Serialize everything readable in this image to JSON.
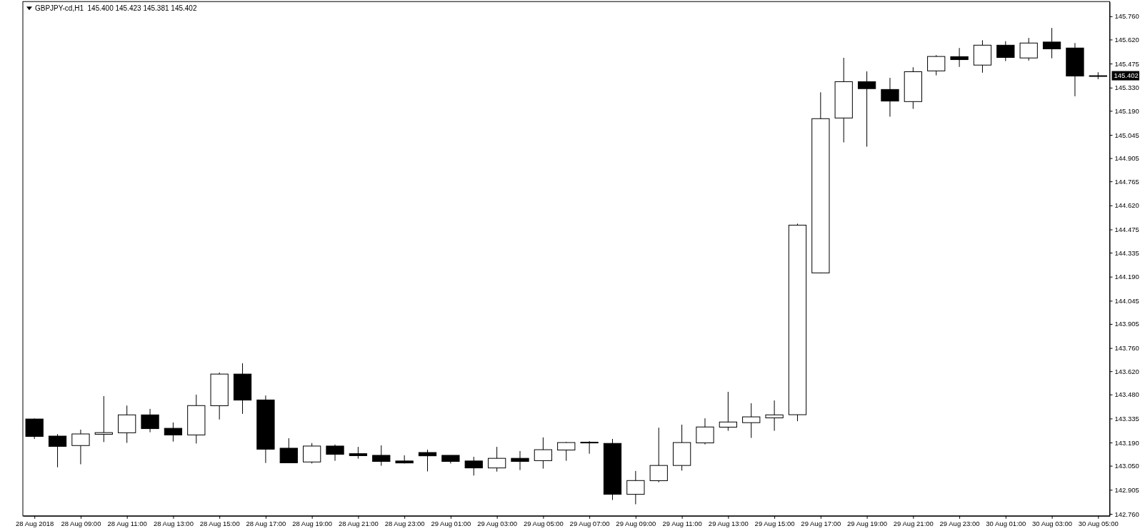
{
  "chart_data": {
    "type": "candlestick",
    "title": "GBPJPY-cd,H1  145.400 145.423 145.381 145.402",
    "categories": [
      "28 Aug 2018",
      null,
      "28 Aug 09:00",
      null,
      "28 Aug 11:00",
      null,
      "28 Aug 13:00",
      null,
      "28 Aug 15:00",
      null,
      "28 Aug 17:00",
      null,
      "28 Aug 19:00",
      null,
      "28 Aug 21:00",
      null,
      "28 Aug 23:00",
      null,
      "29 Aug 01:00",
      null,
      "29 Aug 03:00",
      null,
      "29 Aug 05:00",
      null,
      "29 Aug 07:00",
      null,
      "29 Aug 09:00",
      null,
      "29 Aug 11:00",
      null,
      "29 Aug 13:00",
      null,
      "29 Aug 15:00",
      null,
      "29 Aug 17:00",
      null,
      "29 Aug 19:00",
      null,
      "29 Aug 21:00",
      null,
      "29 Aug 23:00",
      null,
      "30 Aug 01:00",
      null,
      "30 Aug 03:00",
      null,
      "30 Aug 05:00"
    ],
    "ohlc": [
      [
        143.332,
        143.335,
        143.212,
        143.227
      ],
      [
        143.229,
        143.241,
        143.041,
        143.167
      ],
      [
        143.172,
        143.268,
        143.059,
        143.242
      ],
      [
        143.24,
        143.47,
        143.193,
        143.25
      ],
      [
        143.249,
        143.413,
        143.188,
        143.357
      ],
      [
        143.357,
        143.393,
        143.252,
        143.274
      ],
      [
        143.276,
        143.311,
        143.196,
        143.236
      ],
      [
        143.236,
        143.479,
        143.184,
        143.413
      ],
      [
        143.412,
        143.612,
        143.329,
        143.603
      ],
      [
        143.603,
        143.668,
        143.363,
        143.446
      ],
      [
        143.447,
        143.474,
        143.067,
        143.15
      ],
      [
        143.156,
        143.216,
        143.068,
        143.068
      ],
      [
        143.073,
        143.187,
        143.064,
        143.169
      ],
      [
        143.169,
        143.178,
        143.08,
        143.119
      ],
      [
        143.123,
        143.164,
        143.093,
        143.111
      ],
      [
        143.113,
        143.173,
        143.05,
        143.076
      ],
      [
        143.079,
        143.113,
        143.064,
        143.067
      ],
      [
        143.13,
        143.147,
        143.016,
        143.11
      ],
      [
        143.113,
        143.113,
        143.064,
        143.076
      ],
      [
        143.079,
        143.104,
        142.991,
        143.037
      ],
      [
        143.037,
        143.164,
        143.015,
        143.095
      ],
      [
        143.095,
        143.139,
        143.024,
        143.076
      ],
      [
        143.081,
        143.221,
        143.033,
        143.147
      ],
      [
        143.145,
        143.194,
        143.08,
        143.19
      ],
      [
        143.192,
        143.199,
        143.123,
        143.188
      ],
      [
        143.185,
        143.212,
        142.844,
        142.878
      ],
      [
        142.878,
        143.019,
        142.818,
        142.961
      ],
      [
        142.96,
        143.28,
        142.951,
        143.052
      ],
      [
        143.052,
        143.298,
        143.021,
        143.19
      ],
      [
        143.188,
        143.336,
        143.179,
        143.284
      ],
      [
        143.283,
        143.496,
        143.261,
        143.314
      ],
      [
        143.31,
        143.427,
        143.218,
        143.345
      ],
      [
        143.339,
        143.444,
        143.261,
        143.357
      ],
      [
        143.358,
        144.51,
        143.319,
        144.501
      ],
      [
        144.213,
        145.302,
        144.21,
        145.143
      ],
      [
        145.147,
        145.51,
        145.0,
        145.366
      ],
      [
        145.366,
        145.428,
        144.974,
        145.324
      ],
      [
        145.319,
        145.389,
        145.155,
        145.249
      ],
      [
        145.246,
        145.453,
        145.202,
        145.426
      ],
      [
        145.431,
        145.526,
        145.404,
        145.518
      ],
      [
        145.517,
        145.569,
        145.455,
        145.499
      ],
      [
        145.466,
        145.616,
        145.42,
        145.586
      ],
      [
        145.586,
        145.61,
        145.49,
        145.512
      ],
      [
        145.509,
        145.63,
        145.493,
        145.599
      ],
      [
        145.605,
        145.69,
        145.507,
        145.564
      ],
      [
        145.569,
        145.599,
        145.278,
        145.4
      ],
      [
        145.4,
        145.423,
        145.381,
        145.402
      ]
    ],
    "ylim": [
      142.748,
      145.849
    ],
    "yticks": [
      {
        "value": 142.76,
        "label": "142.760"
      },
      {
        "value": 142.905,
        "label": "142.905"
      },
      {
        "value": 143.05,
        "label": "143.050"
      },
      {
        "value": 143.19,
        "label": "143.190"
      },
      {
        "value": 143.335,
        "label": "143.335"
      },
      {
        "value": 143.48,
        "label": "143.480"
      },
      {
        "value": 143.62,
        "label": "143.620"
      },
      {
        "value": 143.76,
        "label": "143.760"
      },
      {
        "value": 143.905,
        "label": "143.905"
      },
      {
        "value": 144.045,
        "label": "144.045"
      },
      {
        "value": 144.19,
        "label": "144.190"
      },
      {
        "value": 144.335,
        "label": "144.335"
      },
      {
        "value": 144.475,
        "label": "144.475"
      },
      {
        "value": 144.62,
        "label": "144.620"
      },
      {
        "value": 144.765,
        "label": "144.765"
      },
      {
        "value": 144.905,
        "label": "144.905"
      },
      {
        "value": 145.045,
        "label": "145.045"
      },
      {
        "value": 145.19,
        "label": "145.190"
      },
      {
        "value": 145.33,
        "label": "145.330"
      },
      {
        "value": 145.475,
        "label": "145.475"
      },
      {
        "value": 145.62,
        "label": "145.620"
      },
      {
        "value": 145.76,
        "label": "145.760"
      }
    ],
    "annotations": [
      {
        "text": "145.402",
        "y": 145.402
      }
    ]
  }
}
